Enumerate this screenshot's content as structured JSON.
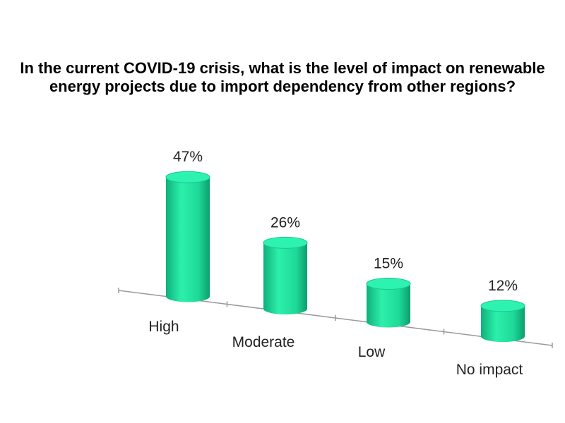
{
  "chart_data": {
    "type": "bar",
    "title": "In the current COVID-19 crisis, what is the level of impact on renewable energy projects due to import dependency from other regions?",
    "categories": [
      "High",
      "Moderate",
      "Low",
      "No impact"
    ],
    "values": [
      47,
      26,
      15,
      12
    ],
    "value_labels": [
      "47%",
      "26%",
      "15%",
      "12%"
    ],
    "unit": "%",
    "bar_color": "#22e0a0",
    "grid": false,
    "legend": "none"
  }
}
